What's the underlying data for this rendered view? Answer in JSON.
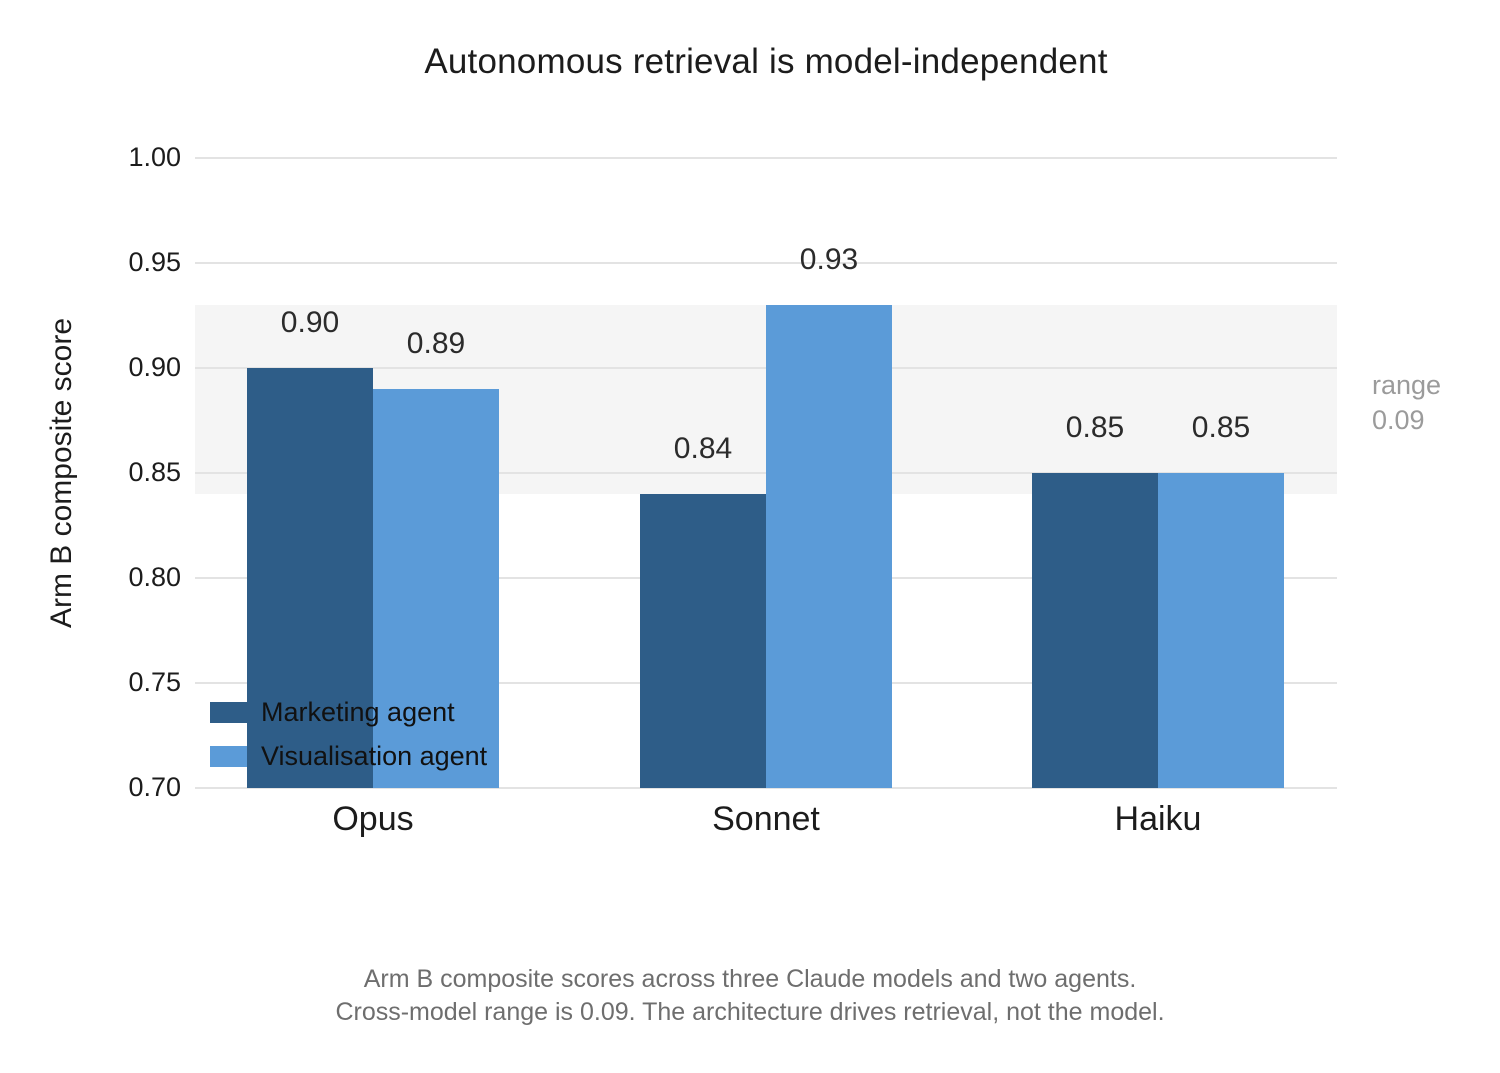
{
  "chart_data": {
    "type": "bar",
    "title": "Autonomous retrieval is model-independent",
    "ylabel": "Arm B composite score",
    "xlabel": "",
    "categories": [
      "Opus",
      "Sonnet",
      "Haiku"
    ],
    "series": [
      {
        "name": "Marketing agent",
        "color": "#2e5d88",
        "values": [
          0.9,
          0.84,
          0.85
        ]
      },
      {
        "name": "Visualisation agent",
        "color": "#5b9bd8",
        "values": [
          0.89,
          0.93,
          0.85
        ]
      }
    ],
    "ylim": [
      0.7,
      1.0
    ],
    "yticks": [
      0.7,
      0.75,
      0.8,
      0.85,
      0.9,
      0.95,
      1.0
    ],
    "grid": true,
    "legend_position": "lower left inside plot",
    "band": {
      "from": 0.84,
      "to": 0.93,
      "color": "#f5f5f5",
      "label_line1": "range",
      "label_line2": "0.09"
    },
    "caption_line1": "Arm B composite scores across three Claude models and two agents.",
    "caption_line2": "Cross-model range is 0.09. The architecture drives retrieval, not the model."
  }
}
